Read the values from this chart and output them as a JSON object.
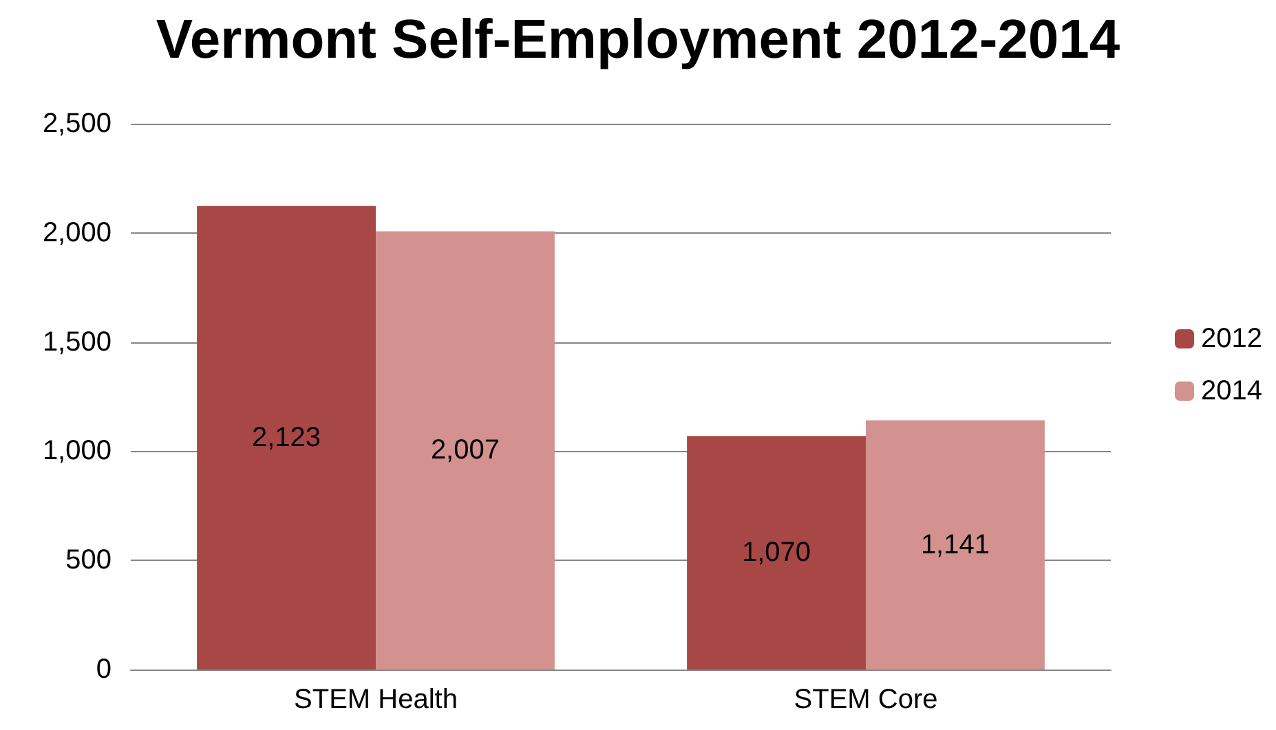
{
  "chart_data": {
    "type": "bar",
    "title": "Vermont Self-Employment 2012-2014",
    "categories": [
      "STEM Health",
      "STEM Core"
    ],
    "series": [
      {
        "name": "2012",
        "color": "#a84846",
        "values": [
          2123,
          1070
        ],
        "value_labels": [
          "2,123",
          "1,070"
        ]
      },
      {
        "name": "2014",
        "color": "#d39290",
        "values": [
          2007,
          1141
        ],
        "value_labels": [
          "2,007",
          "1,141"
        ]
      }
    ],
    "ylim": [
      0,
      2500
    ],
    "yticks": [
      {
        "value": 0,
        "label": "0"
      },
      {
        "value": 500,
        "label": "500"
      },
      {
        "value": 1000,
        "label": "1,000"
      },
      {
        "value": 1500,
        "label": "1,500"
      },
      {
        "value": 2000,
        "label": "2,000"
      },
      {
        "value": 2500,
        "label": "2,500"
      }
    ],
    "grid": "y",
    "legend": "right"
  }
}
